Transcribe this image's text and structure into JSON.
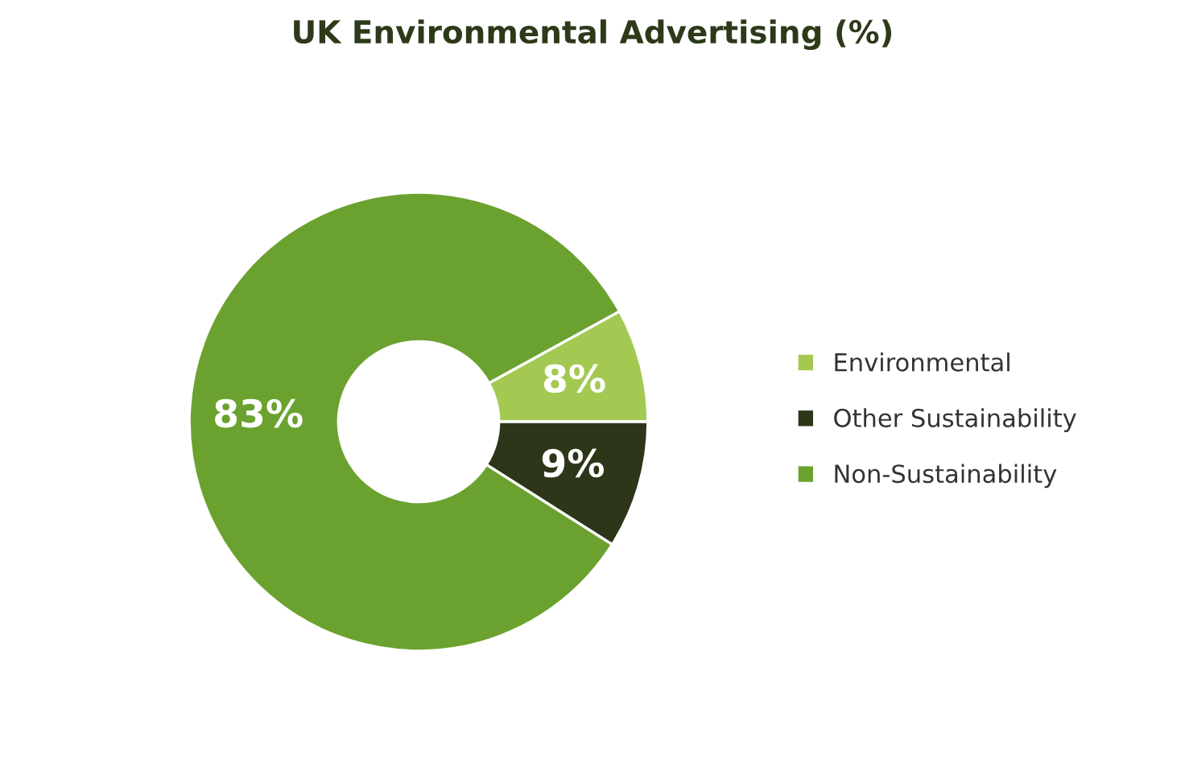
{
  "chart_data": {
    "type": "donut",
    "title": "UK Environmental Advertising (%)",
    "categories": [
      "Environmental",
      "Other Sustainability",
      "Non-Sustainability"
    ],
    "values": [
      8,
      9,
      83
    ],
    "colors": [
      "#a3c952",
      "#2e3619",
      "#6ba22f"
    ],
    "value_labels": [
      "8%",
      "9%",
      "83%"
    ],
    "legend": "right"
  }
}
